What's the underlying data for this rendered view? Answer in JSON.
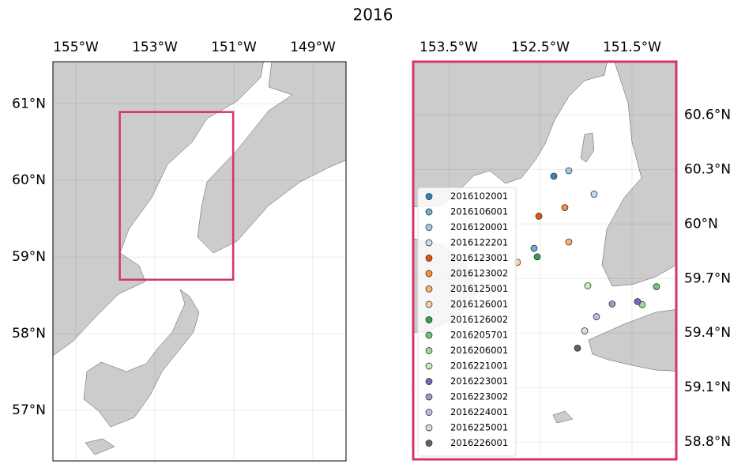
{
  "title": "2016",
  "chart_data": [
    {
      "type": "map",
      "xlim": [
        -155.58,
        -148.16
      ],
      "ylim": [
        56.34,
        61.55
      ],
      "xticks": [
        {
          "value": -155,
          "label": "155°W"
        },
        {
          "value": -153,
          "label": "153°W"
        },
        {
          "value": -151,
          "label": "151°W"
        },
        {
          "value": -149,
          "label": "149°W"
        }
      ],
      "yticks": [
        {
          "value": 57,
          "label": "57°N"
        },
        {
          "value": 58,
          "label": "58°N"
        },
        {
          "value": 59,
          "label": "59°N"
        },
        {
          "value": 60,
          "label": "60°N"
        },
        {
          "value": 61,
          "label": "61°N"
        }
      ],
      "grid": true,
      "inset_color": "#d6336c"
    },
    {
      "type": "scatter",
      "xlim": [
        -153.888,
        -151.017
      ],
      "ylim": [
        58.705,
        60.893
      ],
      "xticks": [
        {
          "value": -153.5,
          "label": "153.5°W"
        },
        {
          "value": -152.5,
          "label": "152.5°W"
        },
        {
          "value": -151.5,
          "label": "151.5°W"
        }
      ],
      "yticks": [
        {
          "value": 58.8,
          "label": "58.8°N"
        },
        {
          "value": 59.1,
          "label": "59.1°N"
        },
        {
          "value": 59.4,
          "label": "59.4°N"
        },
        {
          "value": 59.7,
          "label": "59.7°N"
        },
        {
          "value": 60,
          "label": "60°N"
        },
        {
          "value": 60.3,
          "label": "60.3°N"
        },
        {
          "value": 60.6,
          "label": "60.6°N"
        }
      ],
      "grid": true,
      "frame_color": "#d6336c",
      "legend": "lower left",
      "series": [
        {
          "name": "2016102001",
          "color": "#3182bd",
          "x": [
            -152.353
          ],
          "values": [
            60.263
          ]
        },
        {
          "name": "2016106001",
          "color": "#6baed6",
          "x": [
            -152.569
          ],
          "values": [
            59.866
          ]
        },
        {
          "name": "2016120001",
          "color": "#9ecae1",
          "x": [
            -152.19
          ],
          "values": [
            60.293
          ]
        },
        {
          "name": "2016122201",
          "color": "#c6dbef",
          "x": [
            -151.914
          ],
          "values": [
            60.164
          ]
        },
        {
          "name": "2016123001",
          "color": "#e6550d",
          "x": [
            -152.517
          ],
          "values": [
            60.043
          ]
        },
        {
          "name": "2016123002",
          "color": "#fd8d3c",
          "x": [
            -152.233
          ],
          "values": [
            60.09
          ]
        },
        {
          "name": "2016125001",
          "color": "#fdae6b",
          "x": [
            -152.19
          ],
          "values": [
            59.901
          ]
        },
        {
          "name": "2016126001",
          "color": "#fdd0a2",
          "x": [
            -152.75
          ],
          "values": [
            59.789
          ]
        },
        {
          "name": "2016126002",
          "color": "#31a354",
          "x": [
            -152.534
          ],
          "values": [
            59.819
          ]
        },
        {
          "name": "2016205701",
          "color": "#74c476",
          "x": [
            -151.233
          ],
          "values": [
            59.655
          ]
        },
        {
          "name": "2016206001",
          "color": "#a1d99b",
          "x": [
            -151.388
          ],
          "values": [
            59.556
          ]
        },
        {
          "name": "2016221001",
          "color": "#c7e9c0",
          "x": [
            -151.983
          ],
          "values": [
            59.66
          ]
        },
        {
          "name": "2016223001",
          "color": "#756bb1",
          "x": [
            -151.44
          ],
          "values": [
            59.573
          ]
        },
        {
          "name": "2016223002",
          "color": "#9e9ac8",
          "x": [
            -151.716
          ],
          "values": [
            59.56
          ]
        },
        {
          "name": "2016224001",
          "color": "#bcbddc",
          "x": [
            -151.888
          ],
          "values": [
            59.49
          ]
        },
        {
          "name": "2016225001",
          "color": "#dadaeb",
          "x": [
            -152.017
          ],
          "values": [
            59.412
          ]
        },
        {
          "name": "2016226001",
          "color": "#636363",
          "x": [
            -152.095
          ],
          "values": [
            59.317
          ]
        }
      ]
    }
  ]
}
